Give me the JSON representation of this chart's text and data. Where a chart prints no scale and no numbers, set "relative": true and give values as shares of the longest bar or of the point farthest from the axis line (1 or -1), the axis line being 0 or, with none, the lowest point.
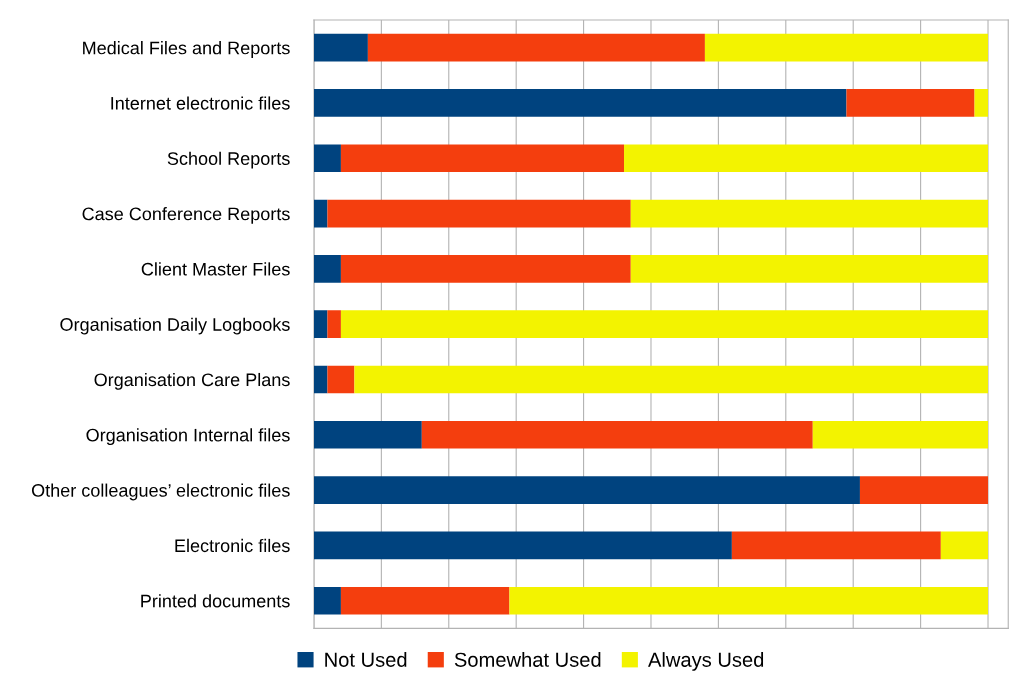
{
  "chart_data": {
    "type": "bar",
    "orientation": "horizontal",
    "stacked": true,
    "relative": true,
    "categories": [
      "Medical Files and Reports",
      "Internet electronic files",
      "School Reports",
      "Case Conference Reports",
      "Client Master Files",
      "Organisation Daily Logbooks",
      "Organisation Care Plans",
      "Organisation Internal files",
      "Other colleagues’ electronic files",
      "Electronic files",
      "Printed documents"
    ],
    "series": [
      {
        "name": "Not Used",
        "color": "#00437f",
        "values": [
          0.08,
          0.79,
          0.04,
          0.02,
          0.04,
          0.02,
          0.02,
          0.16,
          0.81,
          0.62,
          0.04
        ]
      },
      {
        "name": "Somewhat Used",
        "color": "#f43e0e",
        "values": [
          0.5,
          0.19,
          0.42,
          0.45,
          0.43,
          0.02,
          0.04,
          0.58,
          0.19,
          0.31,
          0.25
        ]
      },
      {
        "name": "Always Used",
        "color": "#f3f300",
        "values": [
          0.42,
          0.02,
          0.54,
          0.53,
          0.53,
          0.96,
          0.94,
          0.26,
          null,
          0.07,
          0.71
        ]
      }
    ],
    "legend": "bottom",
    "grid": "x",
    "tick_labels": "y"
  }
}
